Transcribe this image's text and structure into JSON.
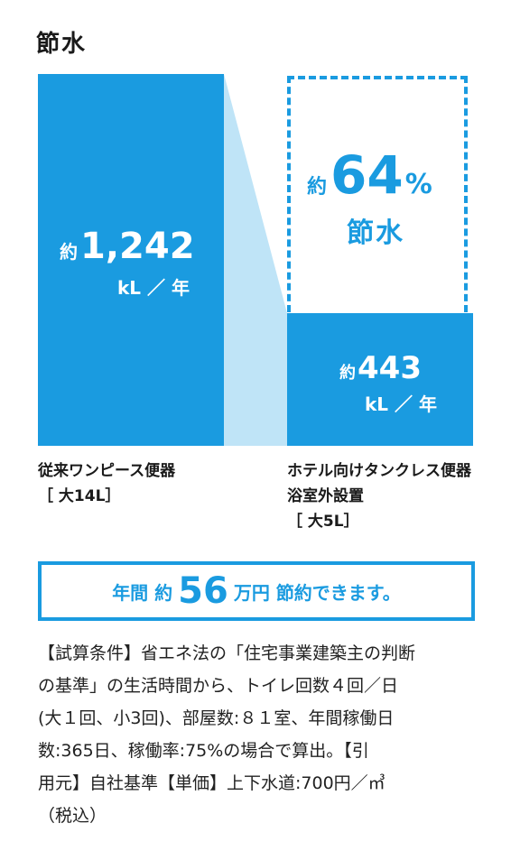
{
  "colors": {
    "blue": "#1a9be0",
    "light_blue": "#bfe4f7"
  },
  "title": "節水",
  "left_bar": {
    "prefix": "約",
    "value": "1,242",
    "unit": "kL ／ 年",
    "caption_line1": "従来ワンピース便器",
    "caption_line2": "［ 大14L］"
  },
  "right_bar": {
    "prefix": "約",
    "value": "443",
    "unit": "kL ／ 年",
    "caption_line1": "ホテル向けタンクレス便器",
    "caption_line2": "浴室外設置",
    "caption_line3": "［ 大5L］"
  },
  "savings": {
    "prefix": "約",
    "percent": "64",
    "percent_sign": "%",
    "label": "節水"
  },
  "banner": {
    "part1": "年間 約",
    "amount": "56",
    "part2": "万円 節約できます。"
  },
  "notes": [
    "【試算条件】省エネ法の「住宅事業建築主の判断",
    "の基準」の生活時間から、トイレ回数４回／日",
    "(大１回、小3回)、部屋数:８１室、年間稼働日",
    "数:365日、稼働率:75%の場合で算出。【引",
    "用元】自社基準【単価】上下水道:700円／㎥",
    "（税込）"
  ]
}
